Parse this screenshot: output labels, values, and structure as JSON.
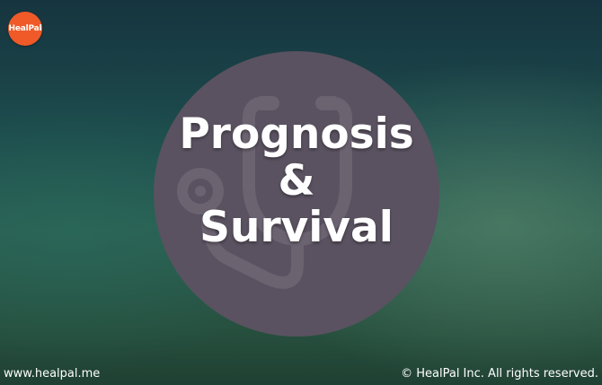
{
  "brand": {
    "logo_text": "HealPal",
    "logo_color": "#ef5a28",
    "logo_icon": "healpal-logo"
  },
  "hero": {
    "icon": "stethoscope-icon",
    "title_line1": "Prognosis",
    "title_line2": "&",
    "title_line3": "Survival"
  },
  "footer": {
    "website": "www.healpal.me",
    "copyright": "© HealPal Inc. All rights reserved."
  }
}
